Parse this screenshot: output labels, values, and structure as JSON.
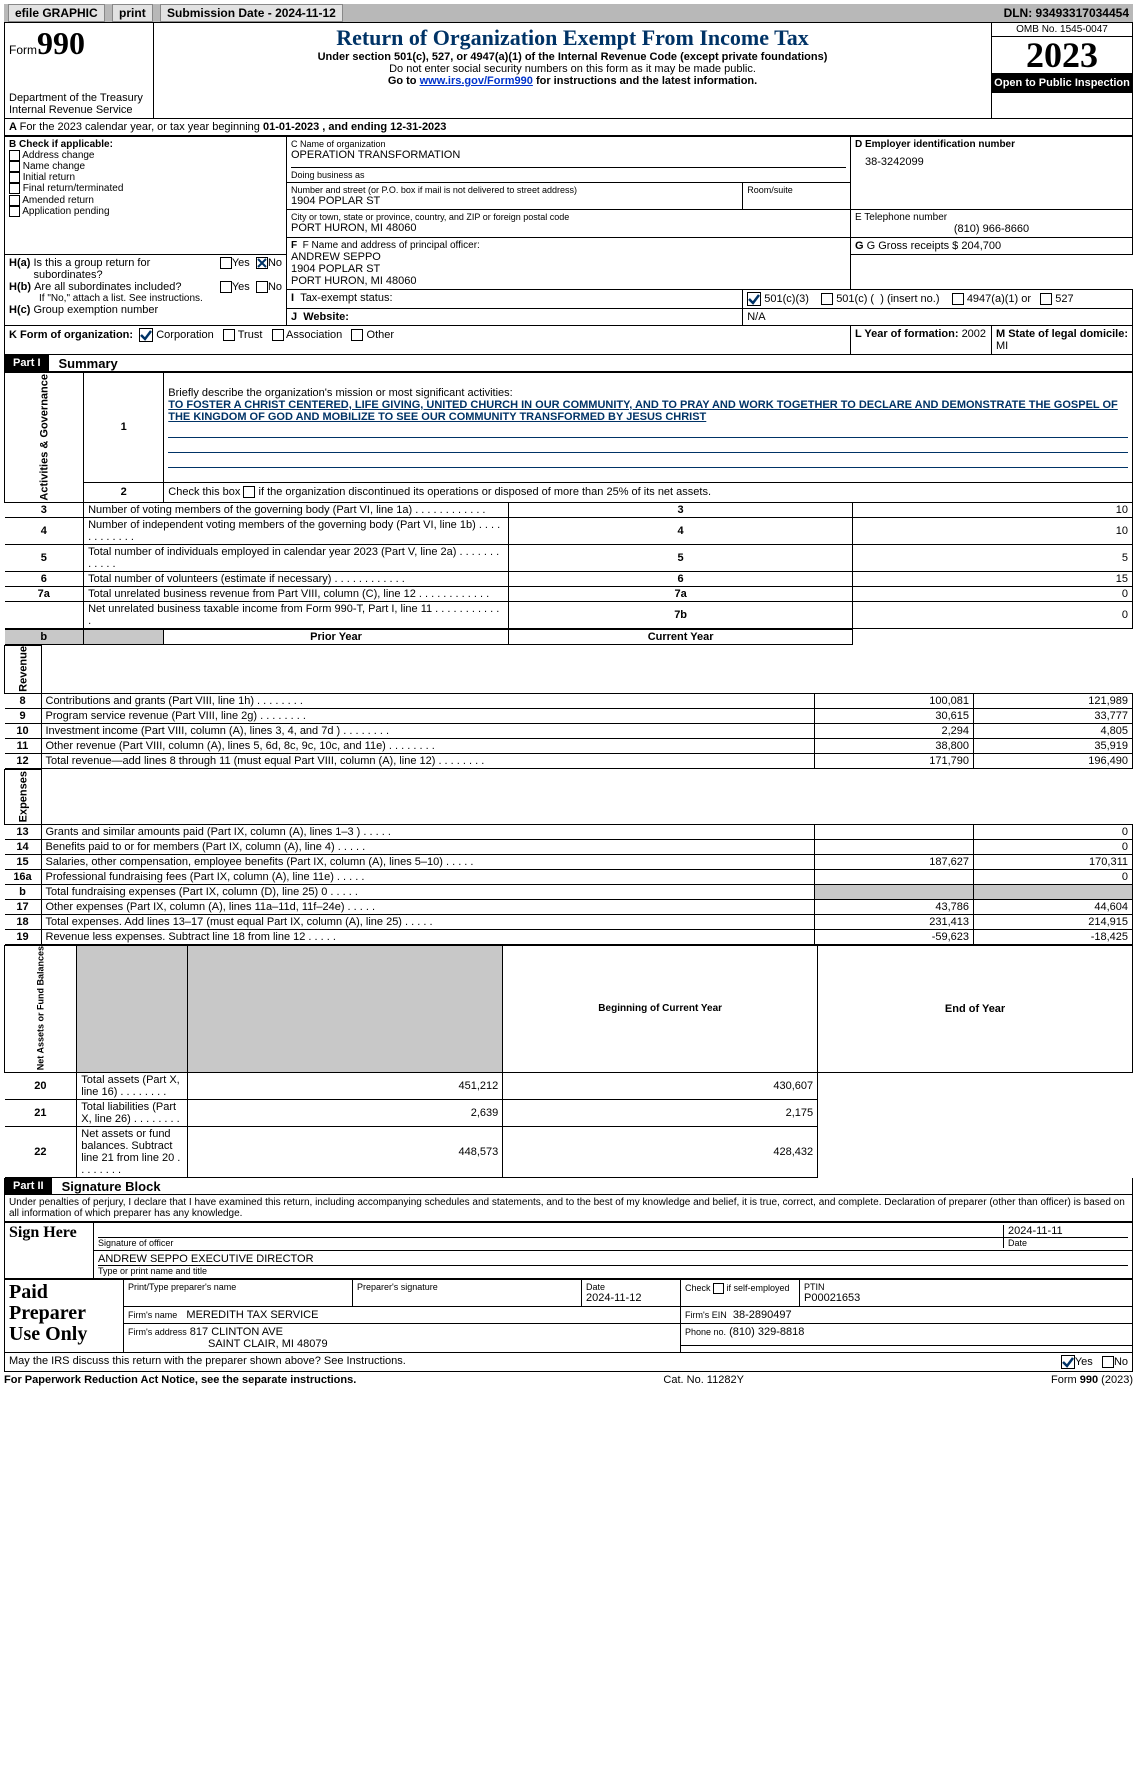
{
  "topbar": {
    "efile": "efile GRAPHIC",
    "print": "print",
    "submission": "Submission Date - 2024-11-12",
    "dln": "DLN: 93493317034454"
  },
  "header": {
    "form_word": "Form",
    "form_no": "990",
    "title": "Return of Organization Exempt From Income Tax",
    "subtitle": "Under section 501(c), 527, or 4947(a)(1) of the Internal Revenue Code (except private foundations)",
    "warn": "Do not enter social security numbers on this form as it may be made public.",
    "goto_pre": "Go to ",
    "goto_link": "www.irs.gov/Form990",
    "goto_post": " for instructions and the latest information.",
    "omb": "OMB No. 1545-0047",
    "year": "2023",
    "open": "Open to Public Inspection",
    "dept": "Department of the Treasury",
    "irs": "Internal Revenue Service"
  },
  "lineA": {
    "text_pre": "For the 2023 calendar year, or tax year beginning ",
    "begin": "01-01-2023",
    "mid": " , and ending ",
    "end": "12-31-2023"
  },
  "boxB": {
    "title": "B Check if applicable:",
    "items": [
      "Address change",
      "Name change",
      "Initial return",
      "Final return/terminated",
      "Amended return",
      "Application pending"
    ]
  },
  "boxC": {
    "name_lbl": "C Name of organization",
    "name": "OPERATION TRANSFORMATION",
    "dba_lbl": "Doing business as",
    "street_lbl": "Number and street (or P.O. box if mail is not delivered to street address)",
    "suite_lbl": "Room/suite",
    "street": "1904 POPLAR ST",
    "city_lbl": "City or town, state or province, country, and ZIP or foreign postal code",
    "city": "PORT HURON, MI  48060"
  },
  "boxD": {
    "lbl": "D Employer identification number",
    "val": "38-3242099"
  },
  "boxE": {
    "lbl": "E Telephone number",
    "val": "(810) 966-8660"
  },
  "boxG": {
    "lbl": "G Gross receipts $",
    "val": "204,700"
  },
  "boxF": {
    "lbl": "F  Name and address of principal officer:",
    "l1": "ANDREW SEPPO",
    "l2": "1904 POPLAR ST",
    "l3": "PORT HURON, MI  48060"
  },
  "boxH": {
    "a": "Is this a group return for subordinates?",
    "a_yes": "Yes",
    "a_no": "No",
    "b": "Are all subordinates included?",
    "b_note": "If \"No,\" attach a list. See instructions.",
    "c": "Group exemption number"
  },
  "boxI": {
    "lbl": "Tax-exempt status:",
    "o1": "501(c)(3)",
    "o2_pre": "501(c) (",
    "o2_post": ") (insert no.)",
    "o3": "4947(a)(1) or",
    "o4": "527"
  },
  "boxJ": {
    "lbl": "Website:",
    "val": "N/A"
  },
  "boxK": {
    "lbl": "K Form of organization:",
    "o1": "Corporation",
    "o2": "Trust",
    "o3": "Association",
    "o4": "Other"
  },
  "boxL": {
    "lbl": "L Year of formation:",
    "val": "2002"
  },
  "boxM": {
    "lbl": "M State of legal domicile:",
    "val": "MI"
  },
  "part1": {
    "hdr": "Part I",
    "title": "Summary",
    "q1": "Briefly describe the organization's mission or most significant activities:",
    "mission": "TO FOSTER A CHRIST CENTERED, LIFE GIVING, UNITED CHURCH IN OUR COMMUNITY, AND TO PRAY AND WORK TOGETHER TO DECLARE AND DEMONSTRATE THE GOSPEL OF THE KINGDOM OF GOD AND MOBILIZE TO SEE OUR COMMUNITY TRANSFORMED BY JESUS CHRIST",
    "q2": "Check this box      if the organization discontinued its operations or disposed of more than 25% of its net assets.",
    "vlabel_ag": "Activities & Governance",
    "vlabel_rev": "Revenue",
    "vlabel_exp": "Expenses",
    "vlabel_na": "Net Assets or Fund Balances",
    "col_prior": "Prior Year",
    "col_curr": "Current Year",
    "col_beg": "Beginning of Current Year",
    "col_end": "End of Year",
    "rows_gov": [
      {
        "n": "3",
        "t": "Number of voting members of the governing body (Part VI, line 1a)",
        "r": "3",
        "v": "10"
      },
      {
        "n": "4",
        "t": "Number of independent voting members of the governing body (Part VI, line 1b)",
        "r": "4",
        "v": "10"
      },
      {
        "n": "5",
        "t": "Total number of individuals employed in calendar year 2023 (Part V, line 2a)",
        "r": "5",
        "v": "5"
      },
      {
        "n": "6",
        "t": "Total number of volunteers (estimate if necessary)",
        "r": "6",
        "v": "15"
      },
      {
        "n": "7a",
        "t": "Total unrelated business revenue from Part VIII, column (C), line 12",
        "r": "7a",
        "v": "0"
      },
      {
        "n": "",
        "t": "Net unrelated business taxable income from Form 990-T, Part I, line 11",
        "r": "7b",
        "v": "0"
      }
    ],
    "rows_rev": [
      {
        "n": "8",
        "t": "Contributions and grants (Part VIII, line 1h)",
        "p": "100,081",
        "c": "121,989"
      },
      {
        "n": "9",
        "t": "Program service revenue (Part VIII, line 2g)",
        "p": "30,615",
        "c": "33,777"
      },
      {
        "n": "10",
        "t": "Investment income (Part VIII, column (A), lines 3, 4, and 7d )",
        "p": "2,294",
        "c": "4,805"
      },
      {
        "n": "11",
        "t": "Other revenue (Part VIII, column (A), lines 5, 6d, 8c, 9c, 10c, and 11e)",
        "p": "38,800",
        "c": "35,919"
      },
      {
        "n": "12",
        "t": "Total revenue—add lines 8 through 11 (must equal Part VIII, column (A), line 12)",
        "p": "171,790",
        "c": "196,490"
      }
    ],
    "rows_exp": [
      {
        "n": "13",
        "t": "Grants and similar amounts paid (Part IX, column (A), lines 1–3 )",
        "p": "",
        "c": "0"
      },
      {
        "n": "14",
        "t": "Benefits paid to or for members (Part IX, column (A), line 4)",
        "p": "",
        "c": "0"
      },
      {
        "n": "15",
        "t": "Salaries, other compensation, employee benefits (Part IX, column (A), lines 5–10)",
        "p": "187,627",
        "c": "170,311"
      },
      {
        "n": "16a",
        "t": "Professional fundraising fees (Part IX, column (A), line 11e)",
        "p": "",
        "c": "0"
      },
      {
        "n": "b",
        "t": "Total fundraising expenses (Part IX, column (D), line 25) 0",
        "p": "GREY",
        "c": "GREY"
      },
      {
        "n": "17",
        "t": "Other expenses (Part IX, column (A), lines 11a–11d, 11f–24e)",
        "p": "43,786",
        "c": "44,604"
      },
      {
        "n": "18",
        "t": "Total expenses. Add lines 13–17 (must equal Part IX, column (A), line 25)",
        "p": "231,413",
        "c": "214,915"
      },
      {
        "n": "19",
        "t": "Revenue less expenses. Subtract line 18 from line 12",
        "p": "-59,623",
        "c": "-18,425"
      }
    ],
    "rows_na": [
      {
        "n": "20",
        "t": "Total assets (Part X, line 16)",
        "p": "451,212",
        "c": "430,607"
      },
      {
        "n": "21",
        "t": "Total liabilities (Part X, line 26)",
        "p": "2,639",
        "c": "2,175"
      },
      {
        "n": "22",
        "t": "Net assets or fund balances. Subtract line 21 from line 20",
        "p": "448,573",
        "c": "428,432"
      }
    ]
  },
  "part2": {
    "hdr": "Part II",
    "title": "Signature Block",
    "decl": "Under penalties of perjury, I declare that I have examined this return, including accompanying schedules and statements, and to the best of my knowledge and belief, it is true, correct, and complete. Declaration of preparer (other than officer) is based on all information of which preparer has any knowledge.",
    "sign_here": "Sign Here",
    "sig_officer": "Signature of officer",
    "sig_date": "Date",
    "sig_date_val": "2024-11-11",
    "officer": "ANDREW SEPPO  EXECUTIVE DIRECTOR",
    "type_name": "Type or print name and title",
    "paid": "Paid Preparer Use Only",
    "pp_name_lbl": "Print/Type preparer's name",
    "pp_sig_lbl": "Preparer's signature",
    "pp_date_lbl": "Date",
    "pp_date": "2024-11-12",
    "pp_check": "Check         if self-employed",
    "pp_ptin_lbl": "PTIN",
    "pp_ptin": "P00021653",
    "pp_firm_lbl": "Firm's name",
    "pp_firm": "MEREDITH TAX SERVICE",
    "pp_ein_lbl": "Firm's EIN",
    "pp_ein": "38-2890497",
    "pp_addr_lbl": "Firm's address",
    "pp_addr1": "817 CLINTON AVE",
    "pp_addr2": "SAINT CLAIR, MI  48079",
    "pp_phone_lbl": "Phone no.",
    "pp_phone": "(810) 329-8818",
    "discuss": "May the IRS discuss this return with the preparer shown above? See Instructions.",
    "yes": "Yes",
    "no": "No"
  },
  "footer": {
    "l": "For Paperwork Reduction Act Notice, see the separate instructions.",
    "c": "Cat. No. 11282Y",
    "r": "Form 990 (2023)"
  }
}
